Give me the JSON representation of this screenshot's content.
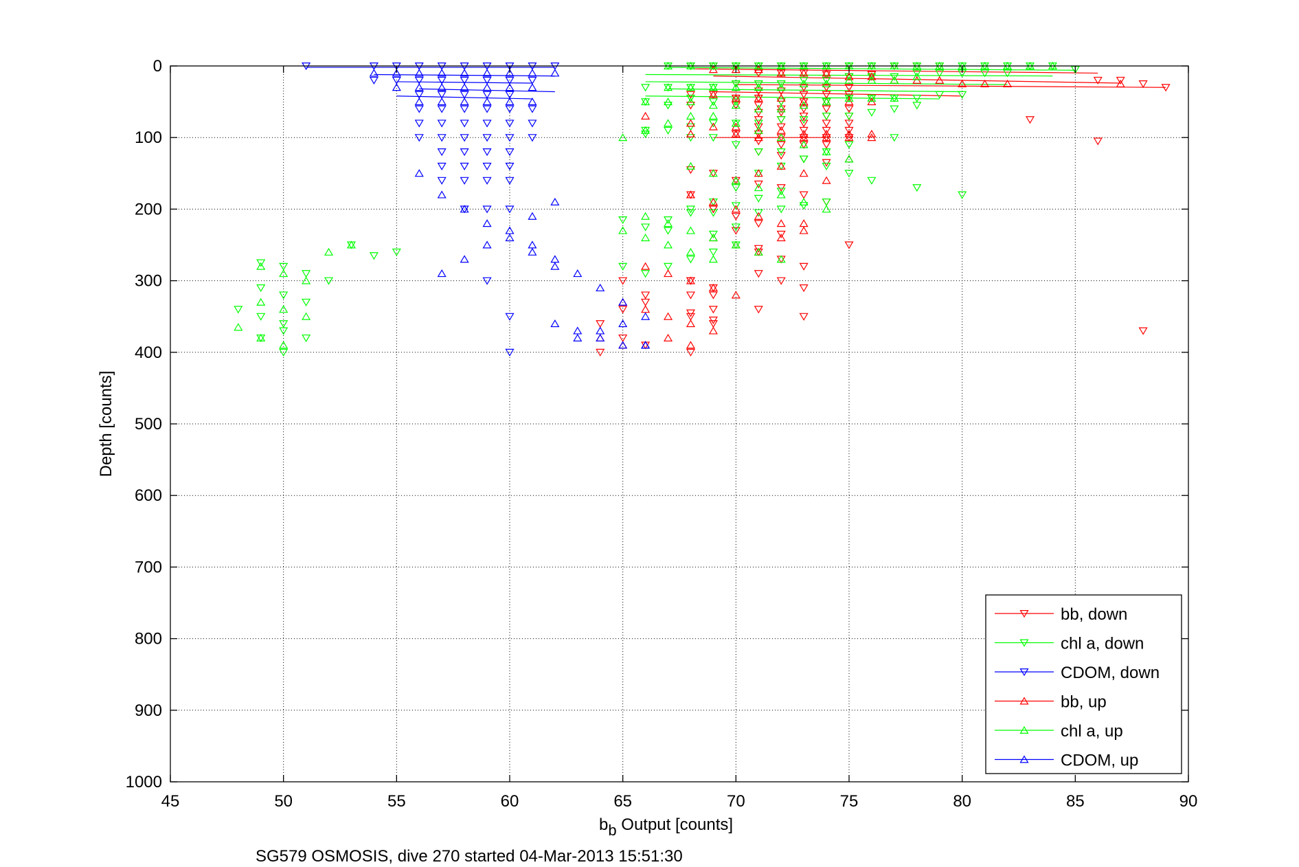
{
  "chart_data": {
    "type": "scatter",
    "title": "",
    "xlabel_main": "b",
    "xlabel_sub": "b",
    "xlabel_rest": " Output [counts]",
    "ylabel": "Depth [counts]",
    "caption": "SG579 OSMOSIS, dive 270 started 04-Mar-2013 15:51:30",
    "xlim": [
      45,
      90
    ],
    "ylim": [
      0,
      1000
    ],
    "y_reversed": true,
    "grid": true,
    "grid_style": "dotted",
    "legend_position": "bottom-right",
    "xticks": [
      "45",
      "50",
      "55",
      "60",
      "65",
      "70",
      "75",
      "80",
      "85",
      "90"
    ],
    "yticks": [
      "0",
      "100",
      "200",
      "300",
      "400",
      "500",
      "600",
      "700",
      "800",
      "900",
      "1000"
    ],
    "series": [
      {
        "name": "bb, down",
        "color": "#ff0000",
        "marker": "triangle-down",
        "x": [
          68,
          69,
          70,
          71,
          72,
          73,
          74,
          75,
          76,
          77,
          78,
          79,
          71,
          72,
          73,
          74,
          75,
          76,
          86,
          87,
          88,
          89,
          83,
          86,
          70,
          71,
          72,
          73,
          74,
          75,
          71,
          72,
          73,
          74,
          75,
          76,
          68,
          69,
          70,
          71,
          72,
          73,
          74,
          68,
          70,
          71,
          72,
          73,
          74,
          75,
          71,
          72,
          73,
          74,
          75,
          71,
          72,
          73,
          74,
          75,
          71,
          72,
          73,
          74,
          75,
          70,
          71,
          72,
          73,
          74,
          75,
          71,
          72,
          73,
          74,
          71,
          72,
          73,
          74,
          68,
          69,
          70,
          71,
          72,
          73,
          74,
          69,
          70,
          71,
          72,
          68,
          69,
          70,
          71,
          71,
          72,
          73,
          75,
          68,
          69,
          71,
          72,
          73,
          68,
          69,
          73,
          68,
          69,
          71,
          65,
          66,
          68,
          69,
          64,
          65,
          66,
          68,
          69,
          64,
          65,
          66,
          68,
          88
        ],
        "y": [
          0,
          0,
          0,
          0,
          0,
          0,
          0,
          0,
          0,
          0,
          0,
          0,
          10,
          10,
          10,
          12,
          15,
          12,
          20,
          20,
          25,
          30,
          75,
          105,
          25,
          25,
          25,
          30,
          30,
          30,
          35,
          35,
          40,
          40,
          40,
          45,
          40,
          40,
          45,
          45,
          50,
          50,
          50,
          55,
          55,
          55,
          60,
          60,
          60,
          60,
          65,
          65,
          70,
          70,
          70,
          75,
          75,
          80,
          80,
          80,
          85,
          85,
          90,
          90,
          90,
          95,
          95,
          100,
          100,
          100,
          100,
          105,
          110,
          110,
          110,
          120,
          125,
          130,
          135,
          145,
          150,
          160,
          165,
          170,
          180,
          190,
          200,
          210,
          220,
          235,
          180,
          200,
          230,
          255,
          260,
          270,
          280,
          250,
          300,
          310,
          290,
          300,
          310,
          345,
          340,
          350,
          400,
          355,
          340,
          300,
          320,
          350,
          360,
          360,
          380,
          390,
          300,
          320,
          400,
          340,
          330,
          320,
          370
        ],
        "x_marks_only": false
      },
      {
        "name": "chl a, down",
        "color": "#00ff00",
        "marker": "triangle-down",
        "x": [
          67,
          68,
          69,
          70,
          71,
          72,
          73,
          74,
          75,
          76,
          77,
          78,
          79,
          80,
          81,
          82,
          83,
          84,
          85,
          66,
          67,
          68,
          69,
          70,
          71,
          72,
          73,
          74,
          75,
          76,
          77,
          78,
          79,
          80,
          81,
          82,
          66,
          67,
          68,
          69,
          70,
          72,
          74,
          75,
          76,
          77,
          78,
          79,
          80,
          66,
          67,
          68,
          69,
          70,
          71,
          72,
          73,
          74,
          75,
          76,
          77,
          78,
          66,
          68,
          69,
          70,
          71,
          72,
          73,
          74,
          75,
          76,
          78,
          80,
          67,
          68,
          69,
          70,
          71,
          72,
          73,
          74,
          75,
          77,
          69,
          70,
          71,
          72,
          73,
          74,
          65,
          66,
          67,
          68,
          69,
          70,
          71,
          72,
          65,
          66,
          67,
          68,
          69,
          70,
          53,
          54,
          55,
          49,
          50,
          51,
          52,
          49,
          50,
          51,
          48,
          49,
          50,
          50,
          51,
          50,
          49
        ],
        "y": [
          0,
          0,
          0,
          0,
          0,
          0,
          0,
          0,
          0,
          0,
          0,
          0,
          0,
          0,
          0,
          0,
          0,
          0,
          5,
          30,
          30,
          30,
          30,
          25,
          25,
          25,
          20,
          20,
          15,
          15,
          15,
          10,
          10,
          10,
          10,
          10,
          50,
          55,
          45,
          50,
          50,
          50,
          50,
          45,
          45,
          45,
          45,
          40,
          40,
          95,
          90,
          85,
          80,
          80,
          80,
          75,
          75,
          70,
          70,
          65,
          60,
          55,
          90,
          100,
          100,
          110,
          120,
          120,
          130,
          140,
          150,
          160,
          170,
          180,
          230,
          200,
          190,
          170,
          150,
          140,
          130,
          120,
          110,
          100,
          235,
          225,
          205,
          200,
          195,
          190,
          215,
          225,
          215,
          205,
          205,
          195,
          185,
          175,
          280,
          290,
          280,
          270,
          260,
          250,
          250,
          265,
          260,
          275,
          280,
          290,
          300,
          310,
          320,
          330,
          340,
          350,
          360,
          370,
          380,
          400,
          380
        ],
        "x_marks_only": false
      },
      {
        "name": "CDOM, down",
        "color": "#0000ff",
        "marker": "triangle-down",
        "x": [
          51,
          54,
          55,
          56,
          57,
          58,
          59,
          60,
          61,
          62,
          54,
          55,
          56,
          57,
          58,
          59,
          60,
          61,
          56,
          57,
          58,
          59,
          60,
          56,
          57,
          58,
          59,
          60,
          61,
          56,
          57,
          58,
          59,
          60,
          61,
          56,
          57,
          58,
          59,
          60,
          61,
          57,
          58,
          59,
          60,
          57,
          58,
          59,
          60,
          57,
          58,
          59,
          60,
          58,
          59,
          60,
          59,
          60,
          60
        ],
        "y": [
          0,
          0,
          0,
          0,
          0,
          0,
          0,
          0,
          0,
          0,
          20,
          20,
          20,
          20,
          20,
          20,
          20,
          20,
          40,
          40,
          40,
          40,
          40,
          60,
          60,
          60,
          60,
          60,
          60,
          80,
          80,
          80,
          80,
          80,
          80,
          100,
          100,
          100,
          100,
          100,
          100,
          120,
          120,
          120,
          120,
          140,
          140,
          140,
          140,
          160,
          160,
          160,
          160,
          200,
          200,
          200,
          300,
          350,
          400
        ],
        "x_marks_only": false
      },
      {
        "name": "bb, up",
        "color": "#ff0000",
        "marker": "triangle-up",
        "x": [
          69,
          70,
          71,
          72,
          73,
          74,
          75,
          76,
          77,
          78,
          79,
          80,
          81,
          82,
          87,
          69,
          70,
          71,
          72,
          73,
          74,
          75,
          76,
          66,
          68,
          69,
          70,
          71,
          72,
          73,
          74,
          75,
          76,
          68,
          70,
          71,
          72,
          73,
          74,
          75,
          76,
          68,
          70,
          71,
          72,
          73,
          74,
          75,
          68,
          69,
          70,
          71,
          72,
          73,
          69,
          70,
          71,
          72,
          73,
          66,
          67,
          68,
          69,
          70,
          65,
          66,
          67,
          68,
          69,
          64,
          65,
          66,
          67,
          68
        ],
        "y": [
          5,
          5,
          5,
          10,
          10,
          10,
          15,
          15,
          20,
          20,
          20,
          25,
          25,
          25,
          25,
          40,
          45,
          45,
          45,
          50,
          50,
          50,
          50,
          70,
          80,
          85,
          85,
          90,
          90,
          95,
          95,
          95,
          95,
          95,
          95,
          100,
          100,
          100,
          100,
          100,
          100,
          180,
          160,
          150,
          140,
          150,
          160,
          130,
          180,
          190,
          200,
          210,
          220,
          230,
          240,
          250,
          260,
          240,
          220,
          280,
          290,
          300,
          310,
          320,
          330,
          340,
          350,
          360,
          370,
          380,
          390,
          390,
          380,
          390
        ],
        "x_marks_only": false
      },
      {
        "name": "chl a, up",
        "color": "#00ff00",
        "marker": "triangle-up",
        "x": [
          67,
          68,
          69,
          70,
          71,
          72,
          73,
          74,
          75,
          76,
          77,
          78,
          79,
          80,
          81,
          82,
          83,
          84,
          67,
          68,
          69,
          70,
          71,
          72,
          73,
          74,
          75,
          76,
          77,
          78,
          66,
          67,
          68,
          69,
          70,
          71,
          72,
          73,
          74,
          75,
          76,
          77,
          65,
          66,
          67,
          68,
          69,
          70,
          71,
          72,
          73,
          74,
          75,
          68,
          69,
          70,
          71,
          72,
          73,
          74,
          66,
          67,
          68,
          69,
          70,
          71,
          72,
          65,
          66,
          67,
          68,
          69,
          49,
          50,
          51,
          52,
          53,
          49,
          50,
          51,
          48,
          49,
          50
        ],
        "y": [
          0,
          0,
          0,
          0,
          0,
          0,
          0,
          0,
          0,
          0,
          0,
          0,
          0,
          0,
          0,
          0,
          0,
          0,
          30,
          30,
          30,
          30,
          30,
          30,
          25,
          25,
          20,
          20,
          20,
          15,
          50,
          50,
          50,
          55,
          55,
          60,
          60,
          55,
          50,
          45,
          45,
          45,
          100,
          90,
          80,
          70,
          70,
          80,
          90,
          100,
          110,
          120,
          130,
          140,
          150,
          160,
          170,
          180,
          190,
          200,
          210,
          220,
          230,
          240,
          250,
          260,
          270,
          230,
          240,
          250,
          260,
          270,
          280,
          290,
          300,
          260,
          250,
          330,
          340,
          350,
          365,
          380,
          390
        ],
        "x_marks_only": false
      },
      {
        "name": "CDOM, up",
        "color": "#0000ff",
        "marker": "triangle-up",
        "x": [
          54,
          55,
          56,
          57,
          58,
          59,
          60,
          61,
          62,
          55,
          56,
          57,
          58,
          59,
          60,
          61,
          56,
          57,
          58,
          59,
          60,
          61,
          56,
          57,
          58,
          59,
          60,
          61,
          62,
          57,
          58,
          59,
          60,
          61,
          62,
          61,
          62,
          63,
          64,
          65,
          66,
          62,
          63,
          64,
          65,
          66,
          63,
          64,
          65,
          66
        ],
        "y": [
          10,
          10,
          10,
          10,
          10,
          10,
          10,
          10,
          10,
          30,
          30,
          30,
          30,
          30,
          30,
          30,
          50,
          50,
          50,
          50,
          50,
          50,
          150,
          180,
          200,
          220,
          240,
          260,
          280,
          290,
          270,
          250,
          230,
          210,
          190,
          250,
          270,
          290,
          310,
          330,
          350,
          360,
          370,
          380,
          390,
          390,
          380,
          370,
          360,
          390
        ],
        "x_marks_only": false
      }
    ],
    "connector_lines": [
      {
        "color": "#0000ff",
        "x": [
          51,
          62
        ],
        "y": [
          2,
          2
        ]
      },
      {
        "color": "#0000ff",
        "x": [
          54,
          62
        ],
        "y": [
          12,
          14
        ]
      },
      {
        "color": "#0000ff",
        "x": [
          55,
          61
        ],
        "y": [
          22,
          24
        ]
      },
      {
        "color": "#0000ff",
        "x": [
          56,
          62
        ],
        "y": [
          32,
          36
        ]
      },
      {
        "color": "#0000ff",
        "x": [
          55,
          61
        ],
        "y": [
          42,
          46
        ]
      },
      {
        "color": "#00ff00",
        "x": [
          67,
          85
        ],
        "y": [
          2,
          6
        ]
      },
      {
        "color": "#00ff00",
        "x": [
          66,
          84
        ],
        "y": [
          12,
          14
        ]
      },
      {
        "color": "#00ff00",
        "x": [
          66,
          82
        ],
        "y": [
          22,
          26
        ]
      },
      {
        "color": "#00ff00",
        "x": [
          67,
          80
        ],
        "y": [
          32,
          36
        ]
      },
      {
        "color": "#00ff00",
        "x": [
          66,
          79
        ],
        "y": [
          42,
          46
        ]
      },
      {
        "color": "#ff0000",
        "x": [
          68,
          86
        ],
        "y": [
          4,
          10
        ]
      },
      {
        "color": "#ff0000",
        "x": [
          69,
          87
        ],
        "y": [
          14,
          24
        ]
      },
      {
        "color": "#ff0000",
        "x": [
          70,
          89
        ],
        "y": [
          26,
          30
        ]
      },
      {
        "color": "#ff0000",
        "x": [
          69,
          80
        ],
        "y": [
          36,
          42
        ]
      },
      {
        "color": "#ff0000",
        "x": [
          69,
          74
        ],
        "y": [
          100,
          100
        ]
      }
    ]
  }
}
